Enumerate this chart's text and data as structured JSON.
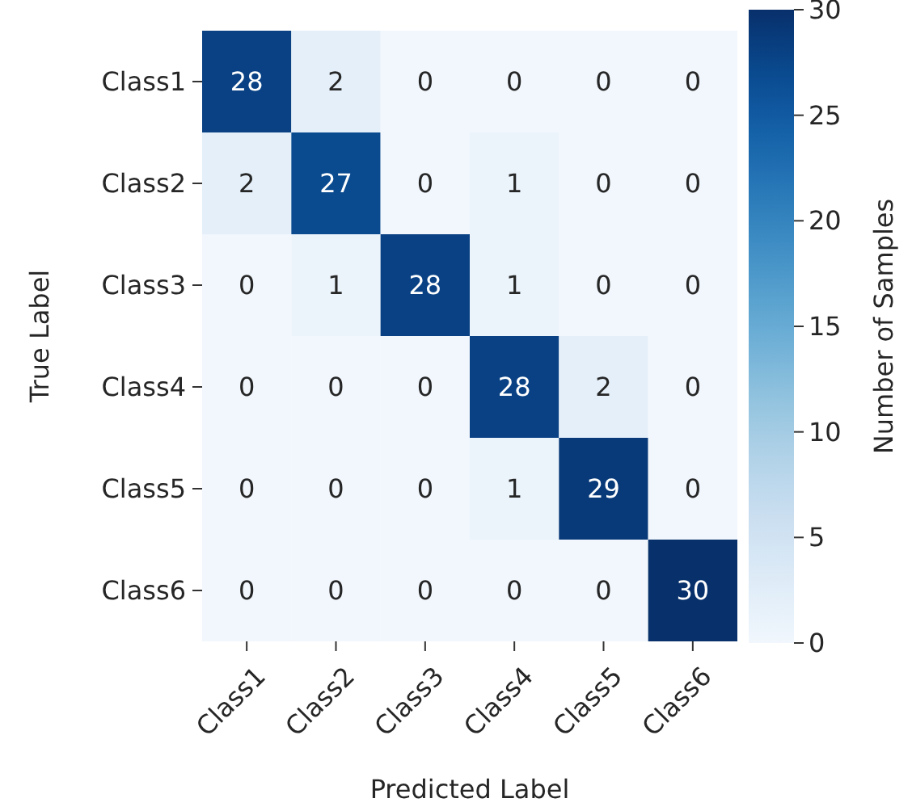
{
  "chart_data": {
    "type": "heatmap",
    "xlabel": "Predicted Label",
    "ylabel": "True Label",
    "clabel": "Number of Samples",
    "categories": [
      "Class1",
      "Class2",
      "Class3",
      "Class4",
      "Class5",
      "Class6"
    ],
    "y_categories": [
      "Class1",
      "Class2",
      "Class3",
      "Class4",
      "Class5",
      "Class6"
    ],
    "cells": [
      [
        28,
        2,
        0,
        0,
        0,
        0
      ],
      [
        2,
        27,
        0,
        1,
        0,
        0
      ],
      [
        0,
        1,
        28,
        1,
        0,
        0
      ],
      [
        0,
        0,
        0,
        28,
        2,
        0
      ],
      [
        0,
        0,
        0,
        1,
        29,
        0
      ],
      [
        0,
        0,
        0,
        0,
        0,
        30
      ]
    ],
    "data_labels": true,
    "clim": [
      0,
      30
    ],
    "cticks": [
      0,
      5,
      10,
      15,
      20,
      25,
      30
    ]
  }
}
